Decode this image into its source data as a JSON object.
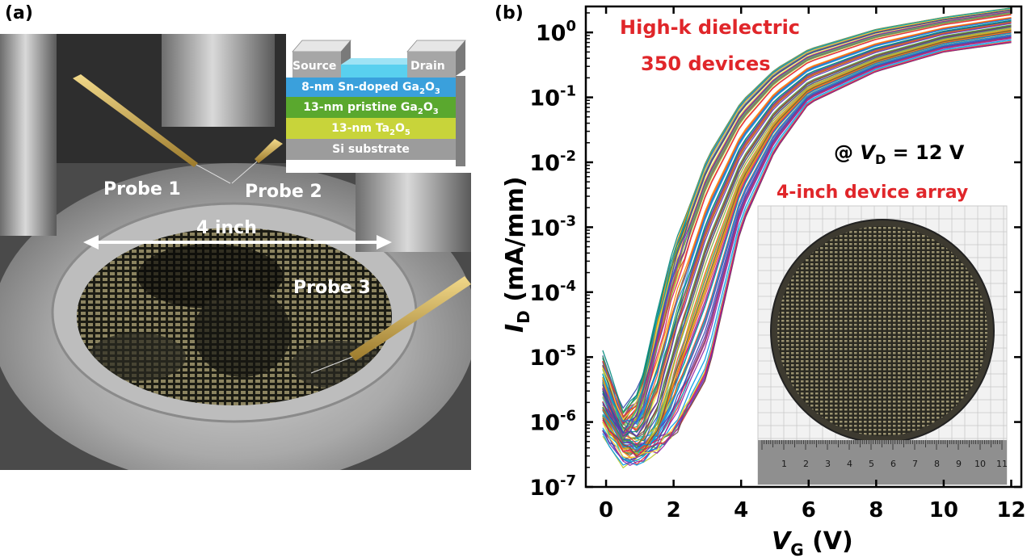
{
  "panel_a": {
    "label": "(a)",
    "probe_labels": [
      "Probe 1",
      "Probe 2",
      "Probe 3"
    ],
    "wafer_size_label": "4 inch",
    "stack_inset": {
      "source": "Source",
      "drain": "Drain",
      "layers": [
        {
          "pre": "8-nm Sn-doped Ga",
          "sub1": "2",
          "mid": "O",
          "sub2": "3",
          "color": "#3aa0dc"
        },
        {
          "pre": "13-nm pristine Ga",
          "sub1": "2",
          "mid": "O",
          "sub2": "3",
          "color": "#5aa82e"
        },
        {
          "pre": "13-nm Ta",
          "sub1": "2",
          "mid": "O",
          "sub2": "5",
          "color": "#c8d43a"
        },
        {
          "pre": "Si substrate",
          "sub1": "",
          "mid": "",
          "sub2": "",
          "color": "#9c9c9c"
        }
      ]
    }
  },
  "panel_b": {
    "label": "(b)",
    "annotation_1": "High-k dielectric",
    "annotation_2": "350 devices",
    "condition_prefix": "@ ",
    "condition_var": "V",
    "condition_sub": "D",
    "condition_rest": " = 12 V",
    "inset_label": "4-inch device array",
    "ruler_numbers": [
      "1",
      "2",
      "3",
      "4",
      "5",
      "6",
      "7",
      "8",
      "9",
      "10",
      "11"
    ]
  },
  "chart_data": {
    "type": "line",
    "title": "",
    "xlabel": {
      "var": "V",
      "sub": "G",
      "unit": " (V)"
    },
    "ylabel": {
      "var": "I",
      "sub": "D",
      "unit": " (mA/mm)"
    },
    "xlim": [
      -0.6,
      12.3
    ],
    "ylim_log10": [
      -7,
      0.4
    ],
    "yscale": "log",
    "xticks": [
      0,
      2,
      4,
      6,
      8,
      10,
      12
    ],
    "yticks_exponents": [
      0,
      -1,
      -2,
      -3,
      -4,
      -5,
      -6,
      -7
    ],
    "ytick_base": "10",
    "device_count": 350,
    "series_envelope": [
      {
        "name": "",
        "x": [
          -0.1,
          0.5,
          1.0,
          1.5,
          2.0,
          3.0,
          4.0,
          5.0,
          6.0,
          8.0,
          10.0,
          12.0
        ],
        "y": [
          2e-06,
          6e-07,
          4e-07,
          1e-06,
          8e-06,
          0.0004,
          0.008,
          0.05,
          0.15,
          0.4,
          0.8,
          1.2
        ]
      },
      {
        "name": "",
        "x": [
          -0.1,
          0.5,
          1.0,
          1.5,
          2.0,
          3.0,
          4.0,
          5.0,
          6.0,
          8.0,
          10.0,
          12.0
        ],
        "y": [
          8e-06,
          1e-06,
          3e-06,
          5e-05,
          0.0006,
          0.015,
          0.1,
          0.3,
          0.6,
          1.2,
          1.8,
          2.5
        ]
      },
      {
        "name": "",
        "x": [
          -0.1,
          0.5,
          1.0,
          1.5,
          2.0,
          3.0,
          4.0,
          5.0,
          6.0,
          8.0,
          10.0,
          12.0
        ],
        "y": [
          1e-06,
          3e-07,
          3e-07,
          4e-07,
          6e-07,
          5e-06,
          0.001,
          0.015,
          0.08,
          0.25,
          0.5,
          0.7
        ]
      }
    ]
  }
}
